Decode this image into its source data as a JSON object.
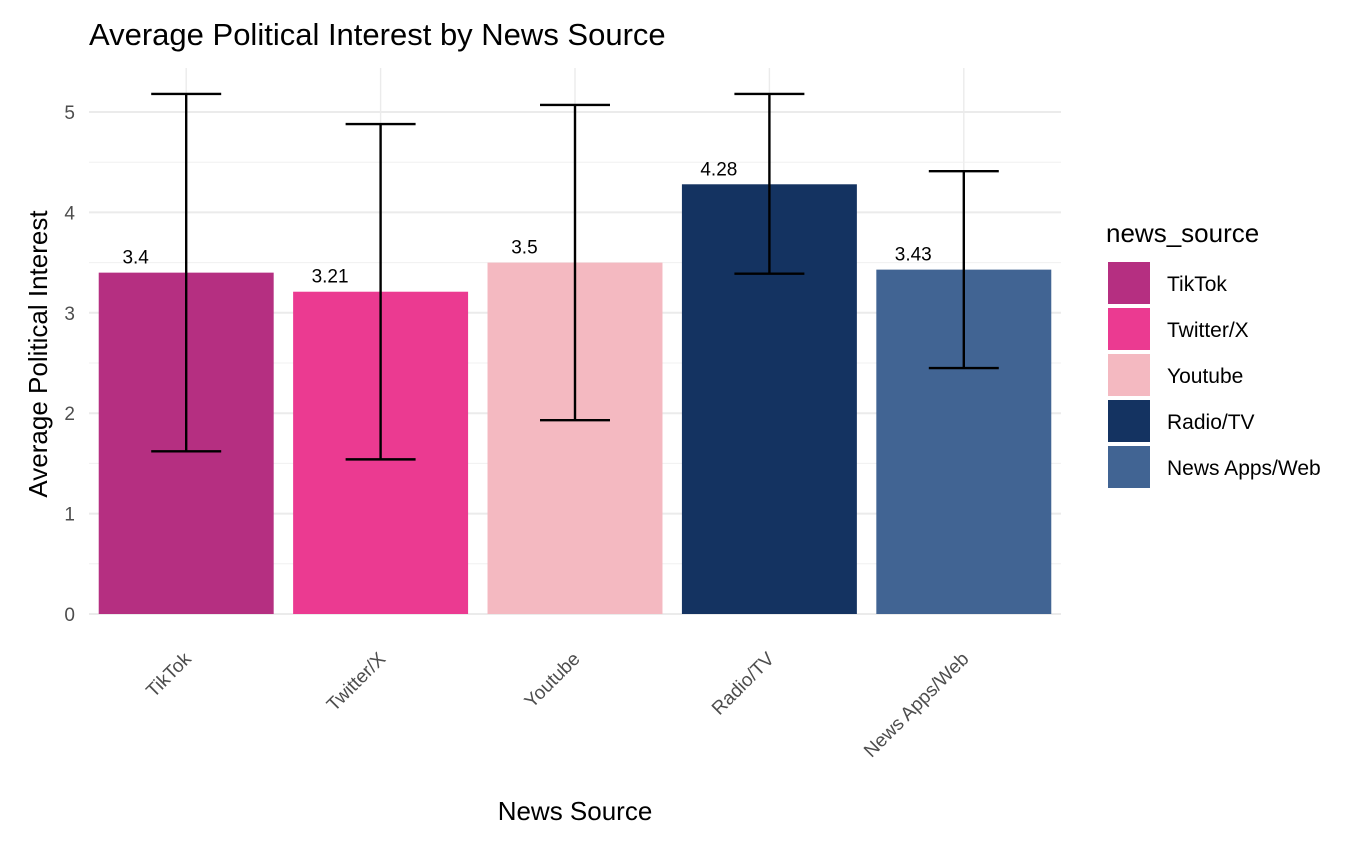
{
  "chart_data": {
    "type": "bar",
    "title": "Average Political Interest by News Source",
    "xlabel": "News Source",
    "ylabel": "Average Political Interest",
    "categories": [
      "TikTok",
      "Twitter/X",
      "Youtube",
      "Radio/TV",
      "News Apps/Web"
    ],
    "values": [
      3.4,
      3.21,
      3.5,
      4.28,
      3.43
    ],
    "value_labels": [
      "3.4",
      "3.21",
      "3.5",
      "4.28",
      "3.43"
    ],
    "error_bars": [
      {
        "low": 1.62,
        "high": 5.18
      },
      {
        "low": 1.54,
        "high": 4.88
      },
      {
        "low": 1.93,
        "high": 5.07
      },
      {
        "low": 3.39,
        "high": 5.18
      },
      {
        "low": 2.45,
        "high": 4.41
      }
    ],
    "colors": [
      "#b52f81",
      "#eb3a91",
      "#f4b9c1",
      "#143361",
      "#416493"
    ],
    "ylim": [
      0,
      5.45
    ],
    "yticks": [
      0,
      1,
      2,
      3,
      4,
      5
    ],
    "grid": true,
    "legend": {
      "title": "news_source",
      "position": "right",
      "items": [
        "TikTok",
        "Twitter/X",
        "Youtube",
        "Radio/TV",
        "News Apps/Web"
      ]
    }
  }
}
